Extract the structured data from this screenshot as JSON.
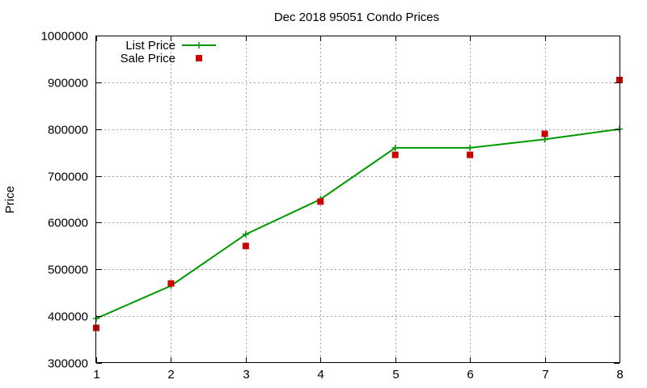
{
  "chart_data": {
    "type": "line",
    "title": "Dec 2018 95051 Condo Prices",
    "xlabel": "",
    "ylabel": "Price",
    "x": [
      1,
      2,
      3,
      4,
      5,
      6,
      7,
      8
    ],
    "xlim": [
      1,
      8
    ],
    "ylim": [
      300000,
      1000000
    ],
    "x_ticks": [
      "1",
      "2",
      "3",
      "4",
      "5",
      "6",
      "7",
      "8"
    ],
    "y_ticks": [
      "300000",
      "400000",
      "500000",
      "600000",
      "700000",
      "800000",
      "900000",
      "1000000"
    ],
    "grid": true,
    "legend_position": "top-left",
    "series": [
      {
        "name": "List Price",
        "style": "line-with-plus-markers",
        "color": "#009900",
        "values": [
          395000,
          465000,
          575000,
          650000,
          760000,
          760000,
          778000,
          800000
        ]
      },
      {
        "name": "Sale Price",
        "style": "square-markers",
        "color": "#cc0000",
        "values": [
          375000,
          470000,
          550000,
          645000,
          745000,
          745000,
          790000,
          905000
        ]
      }
    ]
  }
}
